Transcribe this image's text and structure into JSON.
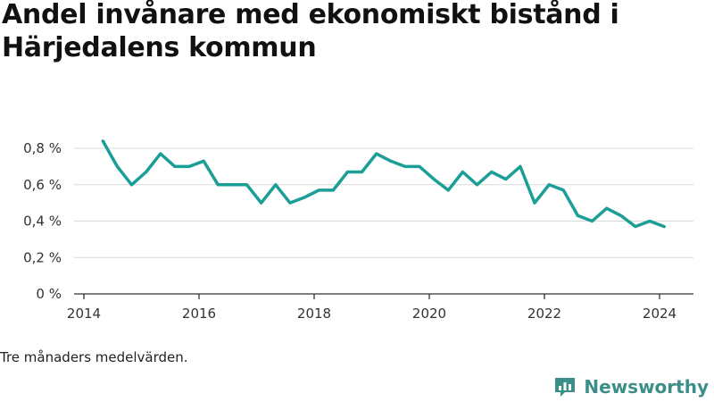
{
  "chart_data": {
    "type": "line",
    "title": "Andel invånare med ekonomiskt bistånd i Härjedalens kommun",
    "xlabel": "",
    "ylabel": "",
    "x_ticks": [
      2014,
      2016,
      2018,
      2020,
      2022,
      2024
    ],
    "xlim": [
      2014,
      2024.6
    ],
    "y_ticks": [
      0,
      0.2,
      0.4,
      0.6,
      0.8
    ],
    "y_tick_labels": [
      "0 %",
      "0,2 %",
      "0,4 %",
      "0,6 %",
      "0,8 %"
    ],
    "ylim": [
      0,
      0.85
    ],
    "grid": "horizontal",
    "series": [
      {
        "color": "#1a9e96",
        "x": [
          2014.33,
          2014.58,
          2014.83,
          2015.08,
          2015.33,
          2015.58,
          2015.83,
          2016.08,
          2016.33,
          2016.58,
          2016.83,
          2017.08,
          2017.33,
          2017.58,
          2017.83,
          2018.08,
          2018.33,
          2018.58,
          2018.83,
          2019.08,
          2019.33,
          2019.58,
          2019.83,
          2020.08,
          2020.33,
          2020.58,
          2020.83,
          2021.08,
          2021.33,
          2021.58,
          2021.83,
          2022.08,
          2022.33,
          2022.58,
          2022.83,
          2023.08,
          2023.33,
          2023.58,
          2023.83,
          2024.08
        ],
        "values": [
          0.84,
          0.7,
          0.6,
          0.67,
          0.77,
          0.7,
          0.7,
          0.73,
          0.6,
          0.6,
          0.6,
          0.5,
          0.6,
          0.5,
          0.53,
          0.57,
          0.57,
          0.67,
          0.67,
          0.77,
          0.73,
          0.7,
          0.7,
          0.63,
          0.57,
          0.67,
          0.6,
          0.67,
          0.63,
          0.7,
          0.5,
          0.6,
          0.57,
          0.43,
          0.4,
          0.47,
          0.43,
          0.37,
          0.4,
          0.37
        ]
      }
    ]
  },
  "note": "Tre månaders medelvärden.",
  "brand": {
    "name": "Newsworthy",
    "color": "#3b8f88"
  }
}
